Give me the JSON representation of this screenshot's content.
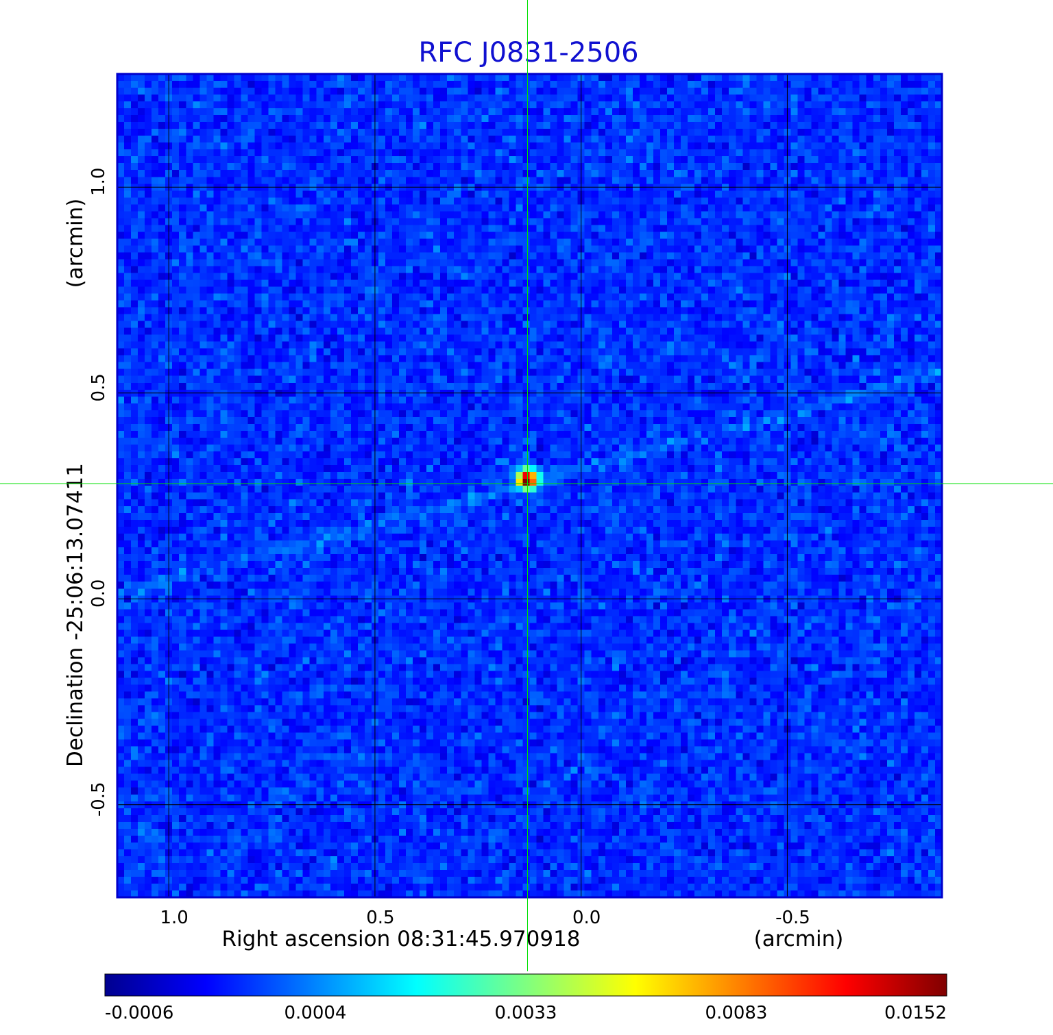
{
  "chart_data": {
    "type": "heatmap",
    "title": "RFC J0831-2506",
    "xlabel": "Right ascension  08:31:45.970918",
    "xunit": "(arcmin)",
    "ylabel": "Declination  -25:06:13.07411",
    "yunit": "(arcmin)",
    "x_axis_reversed": true,
    "xlim": [
      1.125,
      -0.875
    ],
    "ylim": [
      -0.725,
      1.275
    ],
    "x_ticks": [
      1.0,
      0.5,
      0.0,
      -0.5
    ],
    "x_tick_labels": [
      "1.0",
      "0.5",
      "0.0",
      "-0.5"
    ],
    "y_ticks": [
      1.0,
      0.5,
      0.0,
      -0.5
    ],
    "y_tick_labels": [
      "1.0",
      "0.5",
      "0.0",
      "-0.5"
    ],
    "grid": true,
    "source_peak": {
      "ra_offset_arcmin": 0.13,
      "dec_offset_arcmin": 0.29,
      "intensity": 0.0152
    },
    "crosshair_arcmin": {
      "x": 0.13,
      "y": 0.28
    },
    "background_level": 0.0001,
    "colorbar": {
      "colormap": "jet",
      "tick_labels": [
        "-0.0006",
        "0.0004",
        "0.0033",
        "0.0083",
        "0.0152"
      ],
      "tick_values": [
        -0.0006,
        0.0004,
        0.0033,
        0.0083,
        0.0152
      ]
    }
  },
  "colors": {
    "title": "#1010d0",
    "frame": "#0000cc",
    "grid": "#000000",
    "crosshair": "#00e000",
    "text": "#000000"
  }
}
